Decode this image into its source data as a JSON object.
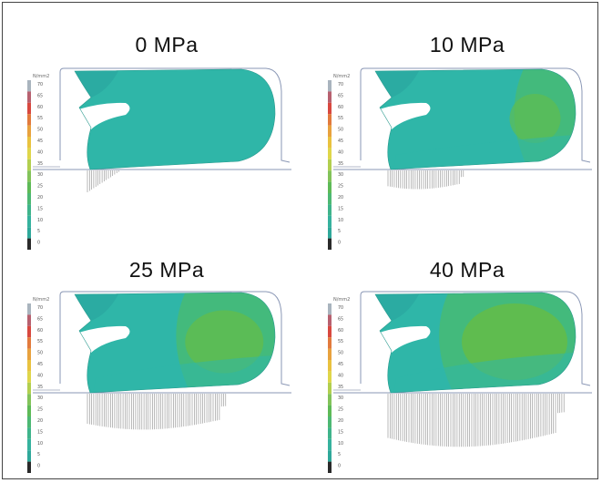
{
  "scale": {
    "unit": "N/mm2",
    "ticks": [
      70,
      65,
      60,
      55,
      50,
      45,
      40,
      35,
      30,
      25,
      20,
      15,
      10,
      5,
      0
    ],
    "colors": [
      "#a9b4be",
      "#b7606f",
      "#d8483f",
      "#e27a3d",
      "#e8a23e",
      "#e9c23f",
      "#dfd64a",
      "#b2cf4f",
      "#83c35a",
      "#5eba57",
      "#4db873",
      "#3fb48b",
      "#36b29e",
      "#2fa89a",
      "#2a2a2a"
    ]
  },
  "panels": [
    {
      "title": "0 MPa",
      "pressure": 0
    },
    {
      "title": "10 MPa",
      "pressure": 10
    },
    {
      "title": "25 MPa",
      "pressure": 25
    },
    {
      "title": "40 MPa",
      "pressure": 40
    }
  ],
  "colors": {
    "low": "#2fb6a8",
    "mid": "#45bb78",
    "high": "#63bd4a",
    "outline": "#8a97b5"
  }
}
